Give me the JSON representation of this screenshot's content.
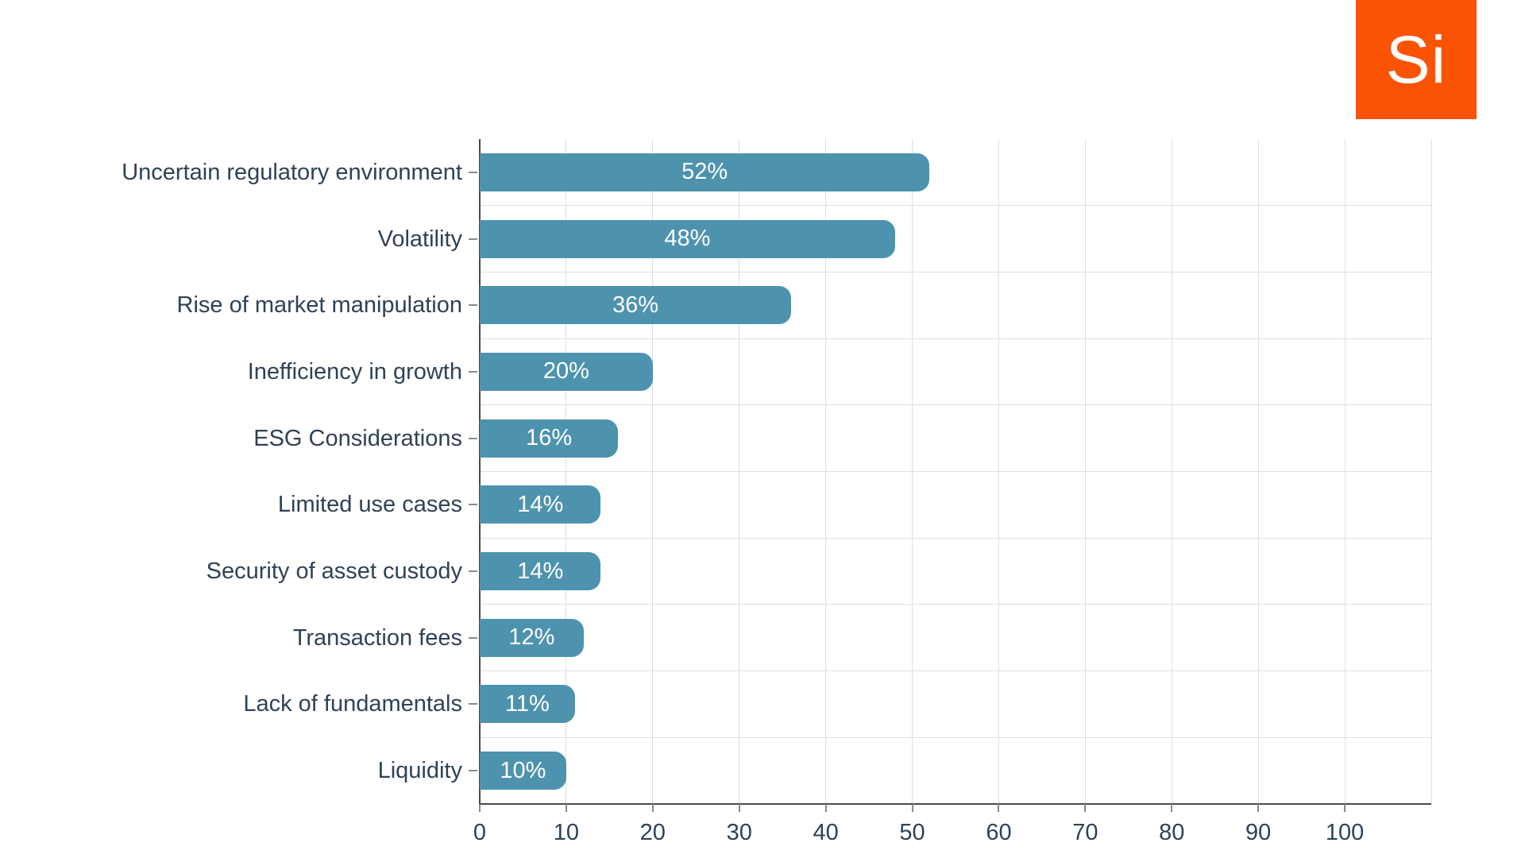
{
  "logo": {
    "text": "Si",
    "background": "#FB5304",
    "text_color": "#FFFFFF"
  },
  "colors": {
    "bar": "#4E93AE",
    "text": "#2F4256",
    "bar_label": "#FFFFFF",
    "grid": "#DEDEDE",
    "axis": "#4A4A4A",
    "tick": "#8A8A8A"
  },
  "chart_data": {
    "type": "bar",
    "orientation": "horizontal",
    "title": "",
    "categories": [
      "Uncertain regulatory environment",
      "Volatility",
      "Rise of market manipulation",
      "Inefficiency in growth",
      "ESG Considerations",
      "Limited use cases",
      "Security of asset custody",
      "Transaction fees",
      "Lack of fundamentals",
      "Liquidity"
    ],
    "values": [
      52,
      48,
      36,
      20,
      16,
      14,
      14,
      12,
      11,
      10
    ],
    "value_suffix": "%",
    "xlabel": "",
    "ylabel": "",
    "xlim": [
      0,
      110
    ],
    "xticks": [
      0,
      10,
      20,
      30,
      40,
      50,
      60,
      70,
      80,
      90,
      100
    ],
    "grid": true,
    "legend": false
  }
}
